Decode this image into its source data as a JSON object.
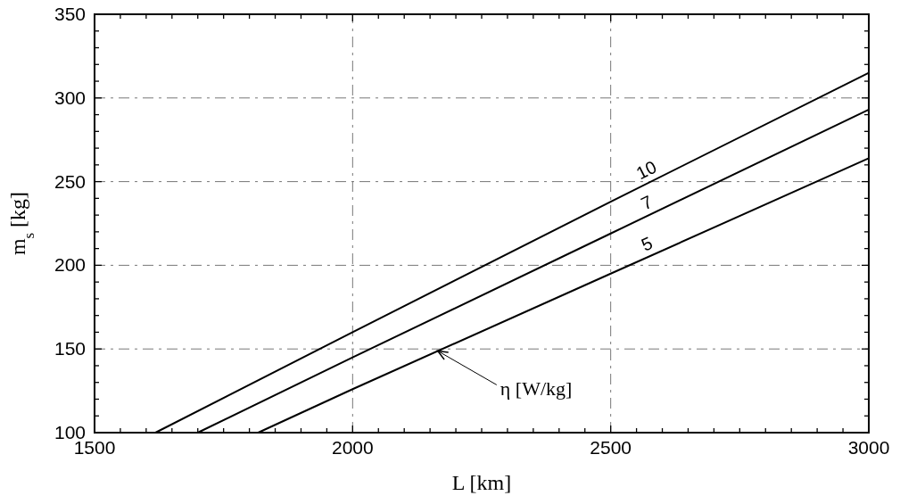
{
  "chart_data": {
    "type": "line",
    "xlabel": "L [km]",
    "ylabel": "m$_{s}$ [kg]",
    "xlim": [
      1500,
      3000
    ],
    "ylim": [
      100,
      350
    ],
    "xticks": [
      1500,
      {
        "value": 1550,
        "label": null
      },
      {
        "value": 1600,
        "label": null
      },
      {
        "value": 1650,
        "label": null
      },
      {
        "value": 1700,
        "label": null
      },
      {
        "value": 1750,
        "label": null
      },
      {
        "value": 1800,
        "label": null
      },
      {
        "value": 1850,
        "label": null
      },
      {
        "value": 1900,
        "label": null
      },
      {
        "value": 1950,
        "label": null
      },
      2000,
      {
        "value": 2050,
        "label": null
      },
      {
        "value": 2100,
        "label": null
      },
      {
        "value": 2150,
        "label": null
      },
      {
        "value": 2200,
        "label": null
      },
      {
        "value": 2250,
        "label": null
      },
      {
        "value": 2300,
        "label": null
      },
      {
        "value": 2350,
        "label": null
      },
      {
        "value": 2400,
        "label": null
      },
      {
        "value": 2450,
        "label": null
      },
      2500,
      {
        "value": 2550,
        "label": null
      },
      {
        "value": 2600,
        "label": null
      },
      {
        "value": 2650,
        "label": null
      },
      {
        "value": 2700,
        "label": null
      },
      {
        "value": 2750,
        "label": null
      },
      {
        "value": 2800,
        "label": null
      },
      {
        "value": 2850,
        "label": null
      },
      {
        "value": 2900,
        "label": null
      },
      {
        "value": 2950,
        "label": null
      },
      3000
    ],
    "yticks": [
      100,
      {
        "value": 110,
        "label": null
      },
      {
        "value": 120,
        "label": null
      },
      {
        "value": 130,
        "label": null
      },
      {
        "value": 140,
        "label": null
      },
      150,
      {
        "value": 160,
        "label": null
      },
      {
        "value": 170,
        "label": null
      },
      {
        "value": 180,
        "label": null
      },
      {
        "value": 190,
        "label": null
      },
      200,
      {
        "value": 210,
        "label": null
      },
      {
        "value": 220,
        "label": null
      },
      {
        "value": 230,
        "label": null
      },
      {
        "value": 240,
        "label": null
      },
      250,
      {
        "value": 260,
        "label": null
      },
      {
        "value": 270,
        "label": null
      },
      {
        "value": 280,
        "label": null
      },
      {
        "value": 290,
        "label": null
      },
      300,
      {
        "value": 310,
        "label": null
      },
      {
        "value": 320,
        "label": null
      },
      {
        "value": 330,
        "label": null
      },
      {
        "value": 340,
        "label": null
      },
      350
    ],
    "grid": true,
    "line_style": "solid",
    "series": [
      {
        "name": "5",
        "color": "#000000",
        "x": [
          1817,
          2000,
          2500,
          3000
        ],
        "values": [
          100,
          126,
          195,
          264
        ]
      },
      {
        "name": "7",
        "color": "#000000",
        "x": [
          1700,
          2000,
          2500,
          3000
        ],
        "values": [
          100,
          145,
          219,
          293
        ]
      },
      {
        "name": "10",
        "color": "#000000",
        "x": [
          1618,
          2000,
          2500,
          3000
        ],
        "values": [
          100,
          160,
          238,
          315
        ]
      }
    ],
    "annotations": [
      {
        "text": "η [W/kg]",
        "x": 2165,
        "y": 148.8
      }
    ]
  }
}
